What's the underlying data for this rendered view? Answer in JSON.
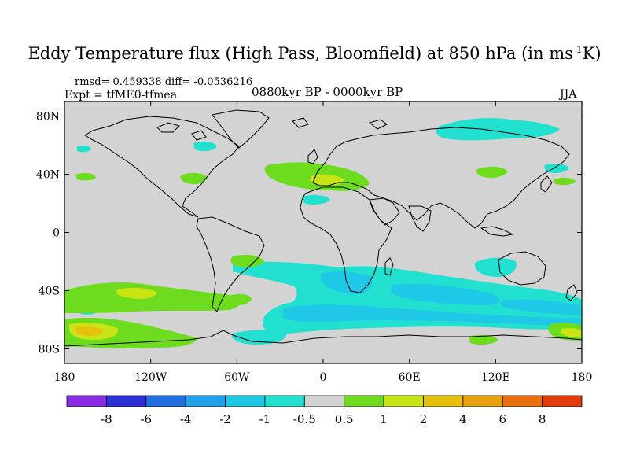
{
  "header": {
    "title_main": "Eddy Temperature flux (High Pass, Bloomfield) at 850 hPa (in ms",
    "title_sup": "-1",
    "title_end": "K)",
    "stats": "rmsd= 0.459338 diff= -0.0536216",
    "expt": "Expt = tfME0-tfmea",
    "period": "0880kyr BP - 0000kyr BP",
    "season": "JJA"
  },
  "map": {
    "projection": "cylindrical-equidistant",
    "lon_range": [
      -180,
      180
    ],
    "lat_range": [
      -90,
      90
    ],
    "lat_ticks": [
      {
        "value": 80,
        "label": "80N"
      },
      {
        "value": 40,
        "label": "40N"
      },
      {
        "value": 0,
        "label": "0"
      },
      {
        "value": -40,
        "label": "40S"
      },
      {
        "value": -80,
        "label": "80S"
      }
    ],
    "lon_ticks": [
      {
        "value": -180,
        "label": "180"
      },
      {
        "value": -120,
        "label": "120W"
      },
      {
        "value": -60,
        "label": "60W"
      },
      {
        "value": 0,
        "label": "0"
      },
      {
        "value": 60,
        "label": "60E"
      },
      {
        "value": 120,
        "label": "120E"
      },
      {
        "value": 180,
        "label": "180"
      }
    ]
  },
  "colorbar": {
    "levels": [
      "-8",
      "-6",
      "-4",
      "-2",
      "-1",
      "-0.5",
      "0.5",
      "1",
      "2",
      "4",
      "6",
      "8"
    ],
    "colors": [
      "#8a2be2",
      "#2f2fd6",
      "#1f6fe0",
      "#1fa0e8",
      "#1fc8e6",
      "#22e0d0",
      "#d3d3d3",
      "#6edc1e",
      "#c8e414",
      "#e8c00e",
      "#e8a00c",
      "#e8700c",
      "#e03c0c"
    ]
  },
  "colors": {
    "land_outline": "#000000",
    "neutral_fill": "#d3d3d3"
  }
}
